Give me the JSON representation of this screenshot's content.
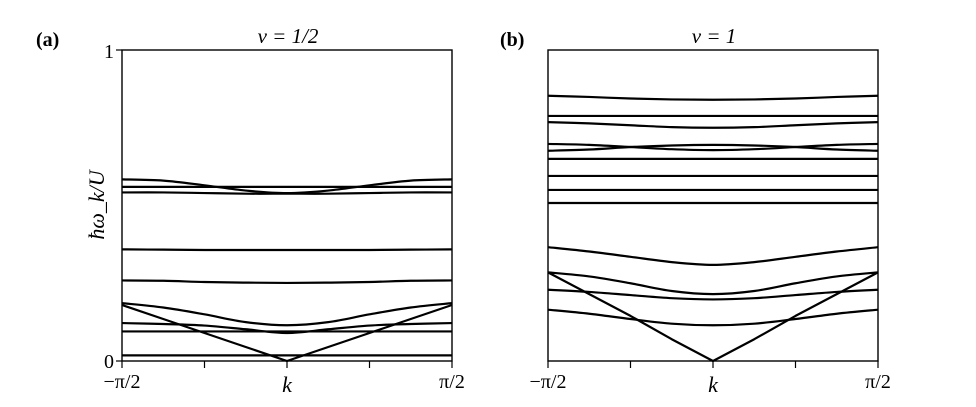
{
  "chart_data": [
    {
      "type": "line",
      "panel_label": "(a)",
      "title": "ν = 1/2",
      "xlabel": "k",
      "ylabel": "ħω_k/U",
      "xlim": [
        -1.5708,
        1.5708
      ],
      "ylim": [
        0,
        1
      ],
      "x_ticks": [
        "−π/2",
        "k",
        "π/2"
      ],
      "y_ticks": [
        "0",
        "1"
      ],
      "grid": false,
      "x": [
        -1.5708,
        -1.1781,
        -0.7854,
        -0.3927,
        0,
        0.3927,
        0.7854,
        1.1781,
        1.5708
      ],
      "series": [
        {
          "values": [
            0.018,
            0.018,
            0.018,
            0.018,
            0.018,
            0.018,
            0.018,
            0.018,
            0.018
          ]
        },
        {
          "values": [
            0.18,
            0.135,
            0.09,
            0.045,
            0.0,
            0.045,
            0.09,
            0.135,
            0.18
          ]
        },
        {
          "values": [
            0.095,
            0.095,
            0.095,
            0.095,
            0.095,
            0.095,
            0.095,
            0.095,
            0.095
          ]
        },
        {
          "values": [
            0.122,
            0.119,
            0.114,
            0.102,
            0.09,
            0.102,
            0.114,
            0.119,
            0.122
          ]
        },
        {
          "values": [
            0.186,
            0.172,
            0.15,
            0.125,
            0.115,
            0.125,
            0.15,
            0.172,
            0.186
          ]
        },
        {
          "values": [
            0.259,
            0.258,
            0.254,
            0.252,
            0.251,
            0.252,
            0.254,
            0.258,
            0.259
          ]
        },
        {
          "values": [
            0.359,
            0.358,
            0.357,
            0.357,
            0.357,
            0.357,
            0.357,
            0.358,
            0.359
          ]
        },
        {
          "values": [
            0.542,
            0.542,
            0.54,
            0.538,
            0.538,
            0.538,
            0.54,
            0.542,
            0.542
          ]
        },
        {
          "values": [
            0.56,
            0.56,
            0.56,
            0.56,
            0.56,
            0.56,
            0.56,
            0.56,
            0.56
          ]
        },
        {
          "values": [
            0.584,
            0.58,
            0.565,
            0.548,
            0.54,
            0.548,
            0.565,
            0.58,
            0.584
          ]
        }
      ]
    },
    {
      "type": "line",
      "panel_label": "(b)",
      "title": "ν = 1",
      "xlabel": "k",
      "xlim": [
        -1.5708,
        1.5708
      ],
      "ylim": [
        0,
        1
      ],
      "x_ticks": [
        "−π/2",
        "k",
        "π/2"
      ],
      "grid": false,
      "x": [
        -1.5708,
        -1.1781,
        -0.7854,
        -0.3927,
        0,
        0.3927,
        0.7854,
        1.1781,
        1.5708
      ],
      "series": [
        {
          "values": [
            0.285,
            0.215,
            0.145,
            0.07,
            0.0,
            0.07,
            0.145,
            0.215,
            0.285
          ]
        },
        {
          "values": [
            0.165,
            0.152,
            0.135,
            0.12,
            0.115,
            0.12,
            0.135,
            0.152,
            0.165
          ]
        },
        {
          "values": [
            0.229,
            0.222,
            0.212,
            0.202,
            0.198,
            0.202,
            0.212,
            0.222,
            0.229
          ]
        },
        {
          "values": [
            0.285,
            0.272,
            0.25,
            0.225,
            0.215,
            0.225,
            0.25,
            0.272,
            0.285
          ]
        },
        {
          "values": [
            0.366,
            0.352,
            0.335,
            0.318,
            0.309,
            0.318,
            0.335,
            0.352,
            0.366
          ]
        },
        {
          "values": [
            0.508,
            0.508,
            0.508,
            0.508,
            0.508,
            0.508,
            0.508,
            0.508,
            0.508
          ]
        },
        {
          "values": [
            0.55,
            0.55,
            0.55,
            0.55,
            0.55,
            0.55,
            0.55,
            0.55,
            0.55
          ]
        },
        {
          "values": [
            0.595,
            0.595,
            0.595,
            0.595,
            0.595,
            0.595,
            0.595,
            0.595,
            0.595
          ]
        },
        {
          "values": [
            0.65,
            0.65,
            0.65,
            0.65,
            0.65,
            0.65,
            0.65,
            0.65,
            0.65
          ]
        },
        {
          "values": [
            0.676,
            0.68,
            0.688,
            0.693,
            0.695,
            0.693,
            0.688,
            0.68,
            0.676
          ]
        },
        {
          "values": [
            0.698,
            0.695,
            0.688,
            0.681,
            0.678,
            0.681,
            0.688,
            0.695,
            0.698
          ]
        },
        {
          "values": [
            0.768,
            0.764,
            0.758,
            0.752,
            0.75,
            0.752,
            0.758,
            0.764,
            0.768
          ]
        },
        {
          "values": [
            0.788,
            0.788,
            0.788,
            0.788,
            0.788,
            0.788,
            0.788,
            0.788,
            0.788
          ]
        },
        {
          "values": [
            0.853,
            0.849,
            0.844,
            0.841,
            0.84,
            0.841,
            0.844,
            0.849,
            0.853
          ]
        }
      ]
    }
  ]
}
